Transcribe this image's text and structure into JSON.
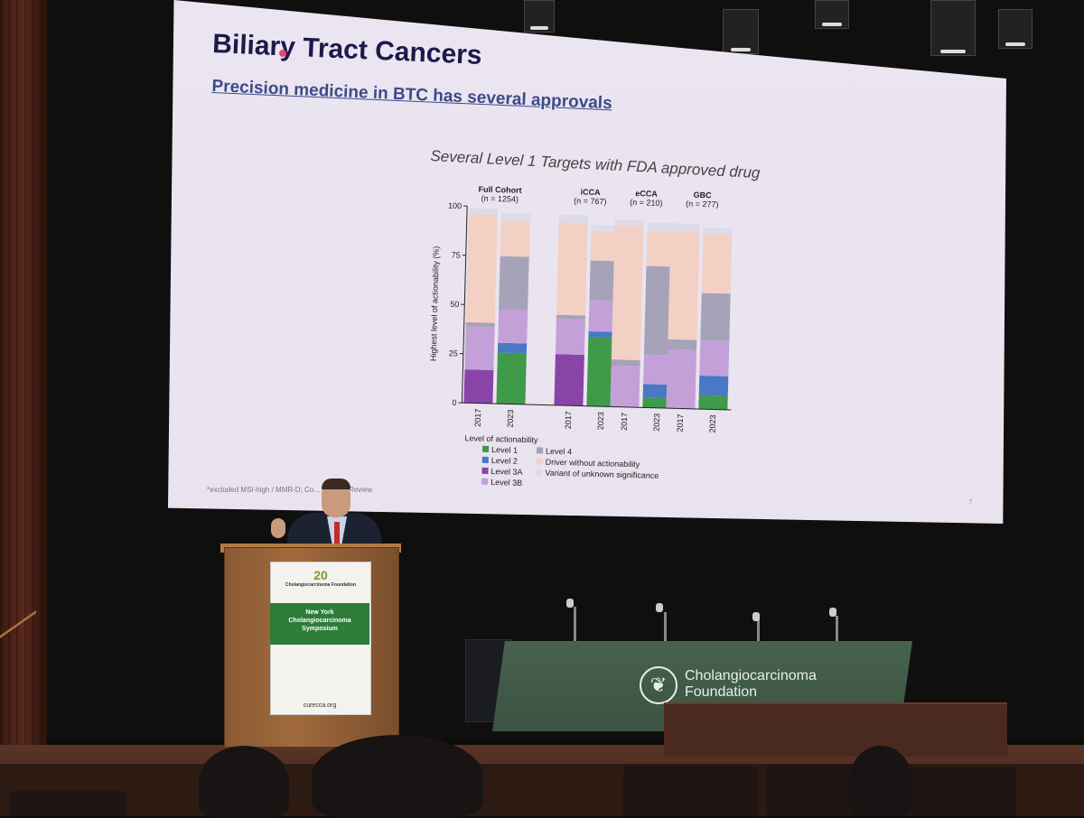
{
  "slide": {
    "title": "Biliary Tract Cancers",
    "subtitle": "Precision medicine in BTC has several approvals",
    "chart_title": "Several Level 1 Targets with FDA approved drug",
    "footnote": "*excluded MSI-high / MMR-D; Co… et al.  In Review",
    "page_number": "7"
  },
  "chart_data": {
    "type": "bar",
    "stacked": true,
    "ylabel": "Highest level of actionability (%)",
    "ylim": [
      0,
      100
    ],
    "yticks": [
      "0",
      "25",
      "50",
      "75",
      "100"
    ],
    "groups": [
      {
        "label": "Full Cohort",
        "n": "(n = 1254)",
        "categories": [
          "2017",
          "2023"
        ]
      },
      {
        "label": "iCCA",
        "n": "(n = 767)",
        "categories": [
          "2017",
          "2023"
        ]
      },
      {
        "label": "eCCA",
        "n": "(n = 210)",
        "categories": [
          "2017",
          "2023"
        ]
      },
      {
        "label": "GBC",
        "n": "(n = 277)",
        "categories": [
          "2017",
          "2023"
        ]
      }
    ],
    "legend_title": "Level of actionability",
    "series": [
      {
        "name": "Level 1",
        "color": "#3f9a4a",
        "values": [
          0,
          26,
          0,
          35,
          0,
          5,
          0,
          7
        ]
      },
      {
        "name": "Level 2",
        "color": "#4a78c4",
        "values": [
          0,
          5,
          0,
          3,
          0,
          7,
          0,
          10
        ]
      },
      {
        "name": "Level 3A",
        "color": "#8a44a8",
        "values": [
          17,
          0,
          26,
          0,
          0,
          0,
          0,
          0
        ]
      },
      {
        "name": "Level 3B",
        "color": "#c4a0d8",
        "values": [
          22,
          17,
          18,
          16,
          21,
          15,
          30,
          18
        ]
      },
      {
        "name": "Level 4",
        "color": "#a6a2b8",
        "values": [
          2,
          27,
          2,
          20,
          3,
          45,
          5,
          24
        ]
      },
      {
        "name": "Driver without actionability",
        "color": "#f2d0c4",
        "values": [
          55,
          18,
          47,
          15,
          68,
          18,
          55,
          30
        ]
      },
      {
        "name": "Variant of unknown significance",
        "color": "#dcdbe8",
        "values": [
          3,
          4,
          4,
          3,
          3,
          4,
          4,
          3
        ]
      }
    ]
  },
  "podium_sign": {
    "foundation": "Cholangiocarcinoma Foundation",
    "event_line1": "New York",
    "event_line2": "Cholangiocarcinoma",
    "event_line3": "Symposium",
    "url": "curecca.org",
    "anniversary": "20"
  },
  "table_banner": {
    "line1": "Cholangiocarcinoma",
    "line2": "Foundation"
  }
}
